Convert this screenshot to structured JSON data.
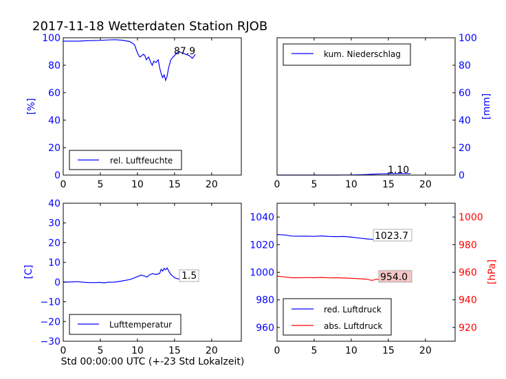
{
  "title": "2017-11-18 Wetterdaten Station RJOB",
  "colors": {
    "blue": "#0000ff",
    "red": "#ff0000",
    "black": "#000000",
    "pressure_label_bg": "#f4c6c6"
  },
  "xlabel": "Std 00:00:00 UTC (+-23 Std Lokalzeit)",
  "chart_data": [
    {
      "id": "humidity",
      "type": "line",
      "xlim": [
        0,
        24
      ],
      "ylim": [
        0,
        100
      ],
      "xticks": [
        "0",
        "5",
        "10",
        "15",
        "20"
      ],
      "yticks": [
        "0",
        "20",
        "40",
        "60",
        "80",
        "100"
      ],
      "ylabel": "[%]",
      "legend": "bottom-left",
      "annotation": "87.9",
      "series": [
        {
          "name": "rel. Luftfeuchte",
          "color": "#0000ff",
          "points": [
            [
              0,
              97.5
            ],
            [
              1,
              97.6
            ],
            [
              2,
              97.5
            ],
            [
              3,
              97.8
            ],
            [
              4,
              98.0
            ],
            [
              5,
              98.1
            ],
            [
              6,
              98.4
            ],
            [
              7,
              98.6
            ],
            [
              8,
              98.2
            ],
            [
              9,
              97.2
            ],
            [
              9.6,
              95
            ],
            [
              10,
              89
            ],
            [
              10.3,
              86
            ],
            [
              10.6,
              87
            ],
            [
              10.8,
              88
            ],
            [
              11,
              87
            ],
            [
              11.2,
              84
            ],
            [
              11.5,
              86
            ],
            [
              11.8,
              82
            ],
            [
              12,
              80
            ],
            [
              12.2,
              83
            ],
            [
              12.5,
              82
            ],
            [
              12.8,
              84
            ],
            [
              13,
              78
            ],
            [
              13.2,
              74
            ],
            [
              13.4,
              71
            ],
            [
              13.6,
              73
            ],
            [
              13.8,
              69
            ],
            [
              14,
              72
            ],
            [
              14.2,
              78
            ],
            [
              14.5,
              84
            ],
            [
              14.8,
              86
            ],
            [
              15,
              87
            ],
            [
              15.3,
              89
            ],
            [
              15.6,
              90
            ],
            [
              16,
              89
            ],
            [
              16.5,
              88
            ],
            [
              17,
              87
            ],
            [
              17.4,
              85
            ],
            [
              17.8,
              87.9
            ]
          ]
        }
      ]
    },
    {
      "id": "precipitation",
      "type": "line",
      "xlim": [
        0,
        24
      ],
      "ylim": [
        0,
        100
      ],
      "xticks": [
        "0",
        "5",
        "10",
        "15",
        "20"
      ],
      "yticks": [
        "0",
        "20",
        "40",
        "60",
        "80",
        "100"
      ],
      "ylabel": "[mm]",
      "legend": "top-left",
      "annotation": "1.10",
      "series": [
        {
          "name": "kum. Niederschlag",
          "color": "#0000ff",
          "points": [
            [
              0,
              0
            ],
            [
              8,
              0
            ],
            [
              10,
              0.1
            ],
            [
              11,
              0.2
            ],
            [
              12,
              0.4
            ],
            [
              13,
              0.7
            ],
            [
              14,
              0.9
            ],
            [
              15,
              1.0
            ],
            [
              16,
              1.05
            ],
            [
              17,
              1.08
            ],
            [
              18,
              1.1
            ]
          ]
        }
      ]
    },
    {
      "id": "temperature",
      "type": "line",
      "xlim": [
        0,
        24
      ],
      "ylim": [
        -30,
        40
      ],
      "xticks": [
        "0",
        "5",
        "10",
        "15",
        "20"
      ],
      "yticks": [
        "−30",
        "−20",
        "−10",
        "0",
        "10",
        "20",
        "30",
        "40"
      ],
      "ylabel": "[C]",
      "legend": "bottom-left",
      "annotation": "1.5",
      "series": [
        {
          "name": "Lufttemperatur",
          "color": "#0000ff",
          "points": [
            [
              0,
              0.0
            ],
            [
              1,
              0.1
            ],
            [
              2,
              0.2
            ],
            [
              3,
              -0.2
            ],
            [
              4,
              -0.3
            ],
            [
              5,
              -0.2
            ],
            [
              5.5,
              -0.4
            ],
            [
              6,
              -0.1
            ],
            [
              7,
              0.0
            ],
            [
              8,
              0.6
            ],
            [
              9,
              1.3
            ],
            [
              9.5,
              2.0
            ],
            [
              10,
              2.8
            ],
            [
              10.5,
              3.5
            ],
            [
              11,
              3.0
            ],
            [
              11.3,
              2.6
            ],
            [
              11.6,
              3.6
            ],
            [
              12,
              4.3
            ],
            [
              12.5,
              3.9
            ],
            [
              13,
              4.4
            ],
            [
              13.2,
              6.5
            ],
            [
              13.4,
              5.6
            ],
            [
              13.6,
              7.0
            ],
            [
              13.8,
              6.2
            ],
            [
              14,
              7.2
            ],
            [
              14.3,
              5.0
            ],
            [
              14.6,
              3.5
            ],
            [
              15,
              2.2
            ],
            [
              15.5,
              1.6
            ],
            [
              16,
              1.5
            ],
            [
              17,
              1.5
            ],
            [
              17.8,
              1.5
            ]
          ]
        }
      ]
    },
    {
      "id": "pressure",
      "type": "line",
      "xlim": [
        0,
        24
      ],
      "ylim_left": [
        950,
        1050
      ],
      "ylim_right": [
        910,
        1010
      ],
      "xticks": [
        "0",
        "5",
        "10",
        "15",
        "20"
      ],
      "yticks_left": [
        "960",
        "980",
        "1000",
        "1020",
        "1040"
      ],
      "yticks_right": [
        "920",
        "940",
        "960",
        "980",
        "1000"
      ],
      "ylabel_right": "[hPa]",
      "legend": "bottom-left",
      "annotations": [
        "1023.7",
        "954.0"
      ],
      "series": [
        {
          "name": "red. Luftdruck",
          "color": "#0000ff",
          "axis": "left",
          "points": [
            [
              0,
              1027.3
            ],
            [
              1,
              1027.0
            ],
            [
              2,
              1026.2
            ],
            [
              3,
              1026.1
            ],
            [
              4,
              1026.1
            ],
            [
              5,
              1026.0
            ],
            [
              6,
              1026.3
            ],
            [
              7,
              1025.9
            ],
            [
              8,
              1025.8
            ],
            [
              9,
              1025.9
            ],
            [
              10,
              1025.4
            ],
            [
              11,
              1024.8
            ],
            [
              12,
              1024.2
            ],
            [
              13,
              1023.8
            ],
            [
              14,
              1023.3
            ],
            [
              15,
              1023.2
            ],
            [
              16,
              1023.5
            ],
            [
              17,
              1023.6
            ],
            [
              18,
              1023.7
            ]
          ]
        },
        {
          "name": "abs. Luftdruck",
          "color": "#ff0000",
          "axis": "right",
          "points": [
            [
              0,
              957.2
            ],
            [
              1,
              956.6
            ],
            [
              2,
              956.0
            ],
            [
              3,
              956.0
            ],
            [
              4,
              956.1
            ],
            [
              5,
              956.0
            ],
            [
              6,
              956.2
            ],
            [
              7,
              955.9
            ],
            [
              8,
              956.0
            ],
            [
              9,
              955.8
            ],
            [
              10,
              955.6
            ],
            [
              11,
              955.3
            ],
            [
              12,
              955.0
            ],
            [
              12.8,
              954.1
            ],
            [
              13.4,
              955.0
            ],
            [
              14,
              954.6
            ],
            [
              15,
              954.2
            ],
            [
              16,
              953.8
            ],
            [
              17,
              954.0
            ],
            [
              18,
              954.0
            ]
          ]
        }
      ]
    }
  ]
}
